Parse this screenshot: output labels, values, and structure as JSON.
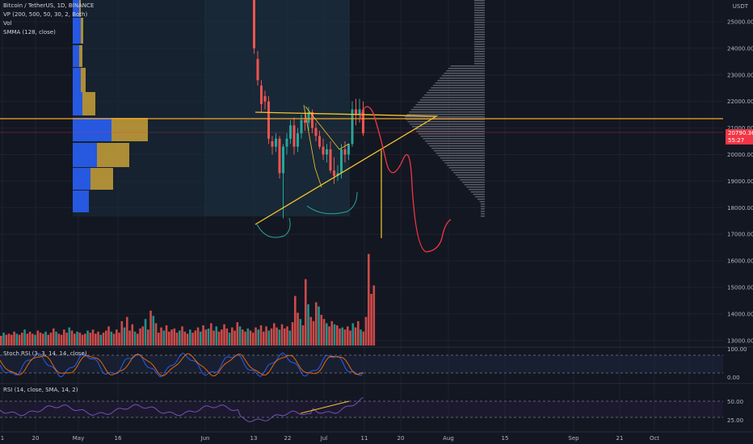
{
  "legend": {
    "main": "Bitcoin / TetherUS, 1D, BINANCE",
    "vp": "VP (200, 500, 50, 30, 2, Both)",
    "vol": "Vol",
    "smma": "SMMA (128, close)"
  },
  "panes": {
    "stoch_label": "Stoch RSI (3, 3, 14, 14, close)",
    "rsi_label": "RSI (14, close, SMA, 14, 2)"
  },
  "currency": "USDT",
  "price_tag": {
    "price": "20790.36",
    "countdown": "55:27"
  },
  "colors": {
    "background": "#131722",
    "up": "#26a69a",
    "down": "#ef5350",
    "drawing": "#f7c52a",
    "projection": "#f23645",
    "vp_blue": "#2962ff",
    "vp_gold": "#d4a93a",
    "grid": "#1e2230"
  },
  "chart_data": [
    {
      "type": "candlestick",
      "symbol": "Bitcoin / TetherUS",
      "interval": "1D",
      "exchange": "BINANCE",
      "y_axis": {
        "ticks": [
          "25000.00",
          "24000.00",
          "23000.00",
          "22000.00",
          "21000.00",
          "20000.00",
          "19000.00",
          "18000.00",
          "17000.00",
          "16000.00",
          "15000.00",
          "14000.00",
          "13000.00"
        ],
        "range": [
          12400,
          26100
        ]
      },
      "x_axis": {
        "ticks": [
          "1",
          "20",
          "May",
          "16",
          "Jun",
          "13",
          "22",
          "Jul",
          "11",
          "20",
          "Aug",
          "15",
          "Sep",
          "21",
          "Oct"
        ],
        "tick_positions": [
          3,
          44,
          97,
          146,
          254,
          314,
          356,
          401,
          451,
          496,
          555,
          625,
          710,
          767,
          810,
          853,
          882
        ]
      },
      "candles": [
        {
          "o": 26000,
          "h": 26100,
          "l": 23800,
          "c": 24000
        },
        {
          "o": 23600,
          "h": 23900,
          "l": 22600,
          "c": 22800
        },
        {
          "o": 22600,
          "h": 22800,
          "l": 21600,
          "c": 21900
        },
        {
          "o": 22200,
          "h": 22400,
          "l": 21700,
          "c": 22000
        },
        {
          "o": 22000,
          "h": 22200,
          "l": 20400,
          "c": 20600
        },
        {
          "o": 20500,
          "h": 20700,
          "l": 20000,
          "c": 20300
        },
        {
          "o": 20300,
          "h": 20800,
          "l": 20100,
          "c": 20600
        },
        {
          "o": 20600,
          "h": 20700,
          "l": 19100,
          "c": 19300
        },
        {
          "o": 19300,
          "h": 20400,
          "l": 17600,
          "c": 20300
        },
        {
          "o": 20300,
          "h": 20800,
          "l": 20000,
          "c": 20600
        },
        {
          "o": 20600,
          "h": 21300,
          "l": 20400,
          "c": 21100
        },
        {
          "o": 21100,
          "h": 21400,
          "l": 20000,
          "c": 20300
        },
        {
          "o": 20300,
          "h": 21000,
          "l": 20100,
          "c": 20800
        },
        {
          "o": 20800,
          "h": 21500,
          "l": 20600,
          "c": 21300
        },
        {
          "o": 21300,
          "h": 21600,
          "l": 20900,
          "c": 21200
        },
        {
          "o": 21200,
          "h": 21800,
          "l": 20900,
          "c": 21600
        },
        {
          "o": 21600,
          "h": 21700,
          "l": 20800,
          "c": 21000
        },
        {
          "o": 21000,
          "h": 21200,
          "l": 20500,
          "c": 20700
        },
        {
          "o": 20700,
          "h": 20900,
          "l": 20200,
          "c": 20300
        },
        {
          "o": 20300,
          "h": 20600,
          "l": 19800,
          "c": 20000
        },
        {
          "o": 20000,
          "h": 20400,
          "l": 19700,
          "c": 20200
        },
        {
          "o": 20200,
          "h": 20500,
          "l": 19300,
          "c": 19400
        },
        {
          "o": 19400,
          "h": 19900,
          "l": 18900,
          "c": 19200
        },
        {
          "o": 19200,
          "h": 19600,
          "l": 19000,
          "c": 19300
        },
        {
          "o": 19300,
          "h": 20400,
          "l": 19100,
          "c": 20200
        },
        {
          "o": 20200,
          "h": 20500,
          "l": 19700,
          "c": 20000
        },
        {
          "o": 20000,
          "h": 20400,
          "l": 19800,
          "c": 20400
        },
        {
          "o": 20400,
          "h": 22000,
          "l": 20300,
          "c": 21700
        },
        {
          "o": 21700,
          "h": 22100,
          "l": 21100,
          "c": 21500
        },
        {
          "o": 21500,
          "h": 22100,
          "l": 21200,
          "c": 21700
        },
        {
          "o": 21700,
          "h": 22000,
          "l": 20700,
          "c": 20800
        }
      ],
      "volume": [
        [
          0,
          0
        ],
        [
          3,
          1
        ],
        [
          1,
          0
        ],
        [
          2,
          0
        ],
        [
          1,
          0
        ],
        [
          4,
          0
        ],
        [
          2,
          1
        ],
        [
          1,
          0
        ],
        [
          3,
          0
        ],
        [
          6,
          1
        ],
        [
          2,
          0
        ],
        [
          4,
          0
        ],
        [
          2,
          0
        ],
        [
          1,
          1
        ],
        [
          5,
          0
        ],
        [
          3,
          0
        ],
        [
          2,
          0
        ],
        [
          4,
          1
        ],
        [
          1,
          0
        ],
        [
          3,
          0
        ],
        [
          7,
          0
        ],
        [
          4,
          1
        ],
        [
          2,
          0
        ],
        [
          1,
          0
        ],
        [
          6,
          0
        ],
        [
          3,
          0
        ],
        [
          8,
          1
        ],
        [
          5,
          0
        ],
        [
          2,
          0
        ],
        [
          4,
          1
        ],
        [
          3,
          0
        ],
        [
          1,
          0
        ],
        [
          2,
          0
        ],
        [
          5,
          1
        ],
        [
          3,
          0
        ],
        [
          6,
          0
        ],
        [
          2,
          0
        ],
        [
          4,
          0
        ],
        [
          1,
          1
        ],
        [
          3,
          0
        ],
        [
          5,
          0
        ],
        [
          9,
          0
        ],
        [
          4,
          1
        ],
        [
          2,
          0
        ],
        [
          6,
          0
        ],
        [
          3,
          0
        ],
        [
          14,
          0
        ],
        [
          8,
          1
        ],
        [
          18,
          0
        ],
        [
          5,
          0
        ],
        [
          11,
          0
        ],
        [
          4,
          1
        ],
        [
          2,
          0
        ],
        [
          7,
          0
        ],
        [
          9,
          0
        ],
        [
          16,
          1
        ],
        [
          6,
          0
        ],
        [
          24,
          0
        ],
        [
          19,
          1
        ],
        [
          12,
          0
        ],
        [
          3,
          0
        ],
        [
          8,
          0
        ],
        [
          5,
          1
        ],
        [
          10,
          0
        ],
        [
          4,
          0
        ],
        [
          6,
          0
        ],
        [
          7,
          0
        ],
        [
          3,
          0
        ],
        [
          5,
          1
        ],
        [
          9,
          0
        ],
        [
          4,
          0
        ],
        [
          2,
          0
        ],
        [
          6,
          1
        ],
        [
          3,
          0
        ],
        [
          5,
          0
        ],
        [
          8,
          0
        ],
        [
          4,
          1
        ],
        [
          10,
          0
        ],
        [
          6,
          0
        ],
        [
          7,
          1
        ],
        [
          12,
          0
        ],
        [
          5,
          0
        ],
        [
          9,
          1
        ],
        [
          4,
          0
        ],
        [
          6,
          0
        ],
        [
          11,
          0
        ],
        [
          7,
          0
        ],
        [
          3,
          1
        ],
        [
          8,
          0
        ],
        [
          5,
          0
        ],
        [
          13,
          0
        ],
        [
          9,
          1
        ],
        [
          6,
          0
        ],
        [
          4,
          0
        ],
        [
          7,
          1
        ],
        [
          5,
          0
        ],
        [
          3,
          0
        ],
        [
          8,
          0
        ],
        [
          6,
          1
        ],
        [
          10,
          0
        ],
        [
          4,
          0
        ],
        [
          9,
          0
        ],
        [
          5,
          1
        ],
        [
          7,
          0
        ],
        [
          12,
          0
        ],
        [
          8,
          0
        ],
        [
          6,
          1
        ],
        [
          11,
          0
        ],
        [
          7,
          0
        ],
        [
          9,
          0
        ],
        [
          5,
          1
        ],
        [
          13,
          0
        ],
        [
          38,
          0
        ],
        [
          22,
          0
        ],
        [
          16,
          1
        ],
        [
          10,
          0
        ],
        [
          54,
          0
        ],
        [
          30,
          1
        ],
        [
          18,
          0
        ],
        [
          14,
          0
        ],
        [
          32,
          0
        ],
        [
          28,
          1
        ],
        [
          20,
          0
        ],
        [
          16,
          0
        ],
        [
          12,
          1
        ],
        [
          9,
          0
        ],
        [
          14,
          0
        ],
        [
          11,
          1
        ],
        [
          10,
          0
        ],
        [
          7,
          0
        ],
        [
          8,
          1
        ],
        [
          6,
          0
        ],
        [
          9,
          0
        ],
        [
          5,
          0
        ],
        [
          12,
          1
        ],
        [
          8,
          0
        ],
        [
          14,
          0
        ],
        [
          6,
          1
        ],
        [
          4,
          0
        ],
        [
          18,
          0
        ],
        [
          78,
          0
        ],
        [
          40,
          0
        ],
        [
          48,
          0
        ]
      ]
    },
    {
      "type": "line",
      "name": "Stoch RSI (3, 3, 14, 14, close)",
      "y_axis": {
        "ticks": [
          "100.00",
          "0.00"
        ]
      }
    },
    {
      "type": "line",
      "name": "RSI (14, close, SMA, 14, 2)",
      "y_axis": {
        "ticks": [
          "50.00",
          "25.00"
        ]
      }
    }
  ]
}
